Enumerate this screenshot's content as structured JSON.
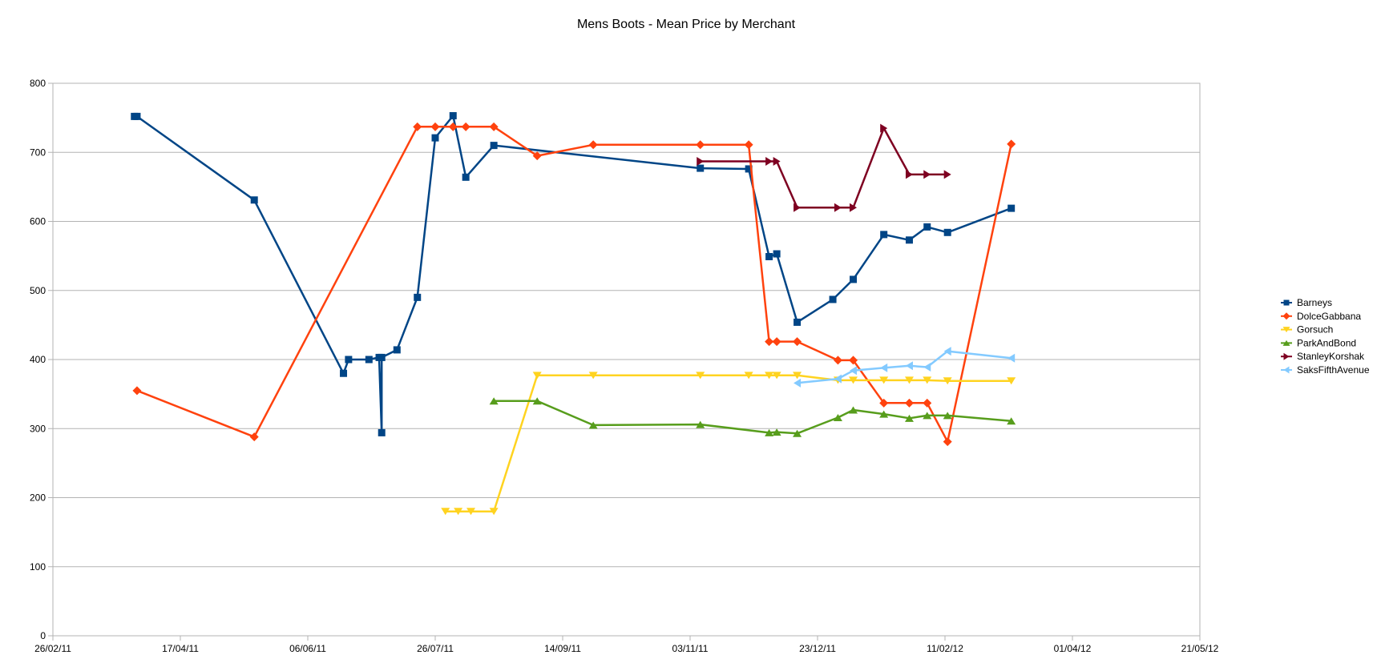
{
  "chart_data": {
    "type": "line",
    "title": "Mens Boots - Mean Price by Merchant",
    "xlabel": "",
    "ylabel": "",
    "x_axis": {
      "type": "date",
      "min": "2011-02-26",
      "max": "2012-05-21",
      "ticks": [
        "2011-02-26",
        "2011-04-17",
        "2011-06-06",
        "2011-07-26",
        "2011-09-14",
        "2011-11-03",
        "2011-12-23",
        "2012-02-11",
        "2012-04-01",
        "2012-05-21"
      ],
      "tick_labels": [
        "26/02/11",
        "17/04/11",
        "06/06/11",
        "26/07/11",
        "14/09/11",
        "03/11/11",
        "23/12/11",
        "11/02/12",
        "01/04/12",
        "21/05/12"
      ]
    },
    "y_axis": {
      "min": 0,
      "max": 800,
      "ticks": [
        0,
        100,
        200,
        300,
        400,
        500,
        600,
        700,
        800
      ],
      "tick_labels": [
        "0",
        "100",
        "200",
        "300",
        "400",
        "500",
        "600",
        "700",
        "800"
      ]
    },
    "grid": "horizontal",
    "legend_position": "right",
    "series": [
      {
        "name": "Barneys",
        "color": "#004586",
        "marker": "square",
        "points": [
          [
            "2011-03-30",
            752
          ],
          [
            "2011-03-31",
            752
          ],
          [
            "2011-05-16",
            631
          ],
          [
            "2011-06-20",
            380
          ],
          [
            "2011-06-22",
            400
          ],
          [
            "2011-06-30",
            400
          ],
          [
            "2011-07-04",
            403
          ],
          [
            "2011-07-05",
            294
          ],
          [
            "2011-07-05",
            403
          ],
          [
            "2011-07-11",
            414
          ],
          [
            "2011-07-19",
            490
          ],
          [
            "2011-07-26",
            721
          ],
          [
            "2011-08-02",
            753
          ],
          [
            "2011-08-07",
            664
          ],
          [
            "2011-08-18",
            710
          ],
          [
            "2011-11-07",
            677
          ],
          [
            "2011-11-26",
            676
          ],
          [
            "2011-12-04",
            549
          ],
          [
            "2011-12-07",
            553
          ],
          [
            "2011-12-15",
            454
          ],
          [
            "2011-12-29",
            487
          ],
          [
            "2012-01-06",
            516
          ],
          [
            "2012-01-18",
            581
          ],
          [
            "2012-01-28",
            573
          ],
          [
            "2012-02-04",
            592
          ],
          [
            "2012-02-12",
            584
          ],
          [
            "2012-03-08",
            619
          ]
        ]
      },
      {
        "name": "DolceGabbana",
        "color": "#ff420e",
        "marker": "diamond",
        "points": [
          [
            "2011-03-31",
            355
          ],
          [
            "2011-05-16",
            288
          ],
          [
            "2011-07-19",
            737
          ],
          [
            "2011-07-26",
            737
          ],
          [
            "2011-08-02",
            737
          ],
          [
            "2011-08-07",
            737
          ],
          [
            "2011-08-18",
            737
          ],
          [
            "2011-09-04",
            695
          ],
          [
            "2011-09-26",
            711
          ],
          [
            "2011-11-07",
            711
          ],
          [
            "2011-11-26",
            711
          ],
          [
            "2011-12-04",
            426
          ],
          [
            "2011-12-07",
            426
          ],
          [
            "2011-12-15",
            426
          ],
          [
            "2011-12-31",
            399
          ],
          [
            "2012-01-06",
            399
          ],
          [
            "2012-01-18",
            337
          ],
          [
            "2012-01-28",
            337
          ],
          [
            "2012-02-04",
            337
          ],
          [
            "2012-02-12",
            281
          ],
          [
            "2012-03-08",
            712
          ]
        ]
      },
      {
        "name": "Gorsuch",
        "color": "#ffd320",
        "marker": "triangle-down",
        "points": [
          [
            "2011-07-30",
            180
          ],
          [
            "2011-08-04",
            180
          ],
          [
            "2011-08-09",
            180
          ],
          [
            "2011-08-18",
            180
          ],
          [
            "2011-09-04",
            377
          ],
          [
            "2011-09-26",
            377
          ],
          [
            "2011-11-07",
            377
          ],
          [
            "2011-11-26",
            377
          ],
          [
            "2011-12-04",
            377
          ],
          [
            "2011-12-07",
            377
          ],
          [
            "2011-12-15",
            377
          ],
          [
            "2011-12-31",
            370
          ],
          [
            "2012-01-06",
            370
          ],
          [
            "2012-01-18",
            370
          ],
          [
            "2012-01-28",
            370
          ],
          [
            "2012-02-04",
            370
          ],
          [
            "2012-02-12",
            369
          ],
          [
            "2012-03-08",
            369
          ]
        ]
      },
      {
        "name": "ParkAndBond",
        "color": "#579d1c",
        "marker": "triangle-up",
        "points": [
          [
            "2011-08-18",
            340
          ],
          [
            "2011-09-04",
            340
          ],
          [
            "2011-09-26",
            305
          ],
          [
            "2011-11-07",
            306
          ],
          [
            "2011-12-04",
            294
          ],
          [
            "2011-12-07",
            295
          ],
          [
            "2011-12-15",
            293
          ],
          [
            "2011-12-31",
            316
          ],
          [
            "2012-01-06",
            327
          ],
          [
            "2012-01-18",
            321
          ],
          [
            "2012-01-28",
            315
          ],
          [
            "2012-02-04",
            319
          ],
          [
            "2012-02-12",
            319
          ],
          [
            "2012-03-08",
            311
          ]
        ]
      },
      {
        "name": "StanleyKorshak",
        "color": "#7e0021",
        "marker": "triangle-right",
        "points": [
          [
            "2011-11-07",
            687
          ],
          [
            "2011-12-04",
            687
          ],
          [
            "2011-12-07",
            687
          ],
          [
            "2011-12-15",
            620
          ],
          [
            "2011-12-31",
            620
          ],
          [
            "2012-01-06",
            620
          ],
          [
            "2012-01-18",
            735
          ],
          [
            "2012-01-28",
            668
          ],
          [
            "2012-02-04",
            668
          ],
          [
            "2012-02-12",
            668
          ]
        ]
      },
      {
        "name": "SaksFifthAvenue",
        "color": "#83caff",
        "marker": "triangle-left",
        "points": [
          [
            "2011-12-15",
            366
          ],
          [
            "2011-12-31",
            372
          ],
          [
            "2012-01-06",
            384
          ],
          [
            "2012-01-18",
            388
          ],
          [
            "2012-01-28",
            391
          ],
          [
            "2012-02-04",
            389
          ],
          [
            "2012-02-12",
            412
          ],
          [
            "2012-03-08",
            402
          ]
        ]
      }
    ]
  }
}
